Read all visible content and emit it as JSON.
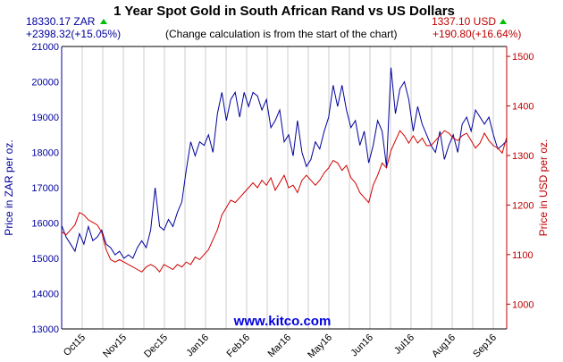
{
  "chart_data": {
    "type": "line",
    "title": "1 Year Spot Gold in South African Rand vs US Dollars",
    "note": "(Change calculation is from the start of the chart)",
    "watermark": "www.kitco.com",
    "left_readout": {
      "price": "18330.17 ZAR",
      "change": "+2398.32(+15.05%)",
      "direction": "up"
    },
    "right_readout": {
      "price": "1337.10 USD",
      "change": "+190.80(+16.64%)",
      "direction": "up"
    },
    "ylabel_left": "Price in ZAR per oz.",
    "ylabel_right": "Price in USD per oz.",
    "ylim_left": [
      13000,
      21000
    ],
    "ylim_right": [
      950,
      1520
    ],
    "yticks_left": [
      "13000",
      "14000",
      "15000",
      "16000",
      "17000",
      "18000",
      "19000",
      "20000",
      "21000"
    ],
    "yticks_right": [
      "1000",
      "1100",
      "1200",
      "1300",
      "1400",
      "1500"
    ],
    "x_ticks": [
      "Oct15",
      "Nov15",
      "Dec15",
      "Jan16",
      "Feb16",
      "Mar16",
      "May16",
      "Jun16",
      "Jul16",
      "Aug16",
      "Sep16"
    ],
    "grid": "vertical",
    "colors": {
      "zar": "#00009c",
      "usd": "#d00000",
      "up_arrow": "#00c000"
    },
    "series": [
      {
        "name": "ZAR",
        "axis": "left",
        "values": [
          15930,
          15600,
          15400,
          15200,
          15700,
          15400,
          15900,
          15500,
          15600,
          15800,
          15400,
          15300,
          15100,
          15200,
          15000,
          15100,
          15000,
          15300,
          15500,
          15300,
          15800,
          17000,
          15900,
          15800,
          16100,
          15900,
          16300,
          16600,
          17500,
          18300,
          17900,
          18300,
          18200,
          18500,
          18000,
          19100,
          19700,
          18900,
          19500,
          19700,
          19000,
          19700,
          19300,
          19700,
          19600,
          19200,
          19500,
          18700,
          18900,
          19200,
          18300,
          18500,
          17900,
          18900,
          18000,
          17600,
          17800,
          18300,
          18100,
          18600,
          19000,
          19900,
          19300,
          19900,
          19200,
          18700,
          18900,
          18200,
          18600,
          17700,
          18200,
          18900,
          18600,
          17600,
          20400,
          19100,
          19800,
          20000,
          19500,
          18600,
          19300,
          18800,
          18500,
          18200,
          18000,
          18600,
          17800,
          18200,
          18500,
          18000,
          18800,
          19000,
          18600,
          19200,
          19000,
          18800,
          19000,
          18500,
          18100,
          18200,
          18330
        ]
      },
      {
        "name": "USD",
        "axis": "right",
        "values": [
          1146,
          1140,
          1150,
          1160,
          1185,
          1180,
          1170,
          1165,
          1160,
          1145,
          1110,
          1090,
          1085,
          1090,
          1085,
          1080,
          1075,
          1070,
          1065,
          1075,
          1080,
          1075,
          1065,
          1080,
          1075,
          1070,
          1080,
          1075,
          1085,
          1080,
          1095,
          1090,
          1100,
          1110,
          1130,
          1150,
          1180,
          1195,
          1210,
          1205,
          1215,
          1225,
          1235,
          1245,
          1235,
          1250,
          1240,
          1255,
          1230,
          1245,
          1260,
          1235,
          1240,
          1225,
          1250,
          1260,
          1250,
          1240,
          1250,
          1265,
          1275,
          1290,
          1285,
          1270,
          1280,
          1255,
          1245,
          1225,
          1215,
          1205,
          1240,
          1260,
          1285,
          1275,
          1310,
          1330,
          1350,
          1340,
          1325,
          1340,
          1325,
          1335,
          1320,
          1320,
          1330,
          1340,
          1350,
          1345,
          1335,
          1330,
          1340,
          1345,
          1330,
          1315,
          1325,
          1345,
          1330,
          1320,
          1315,
          1305,
          1337
        ]
      }
    ]
  }
}
